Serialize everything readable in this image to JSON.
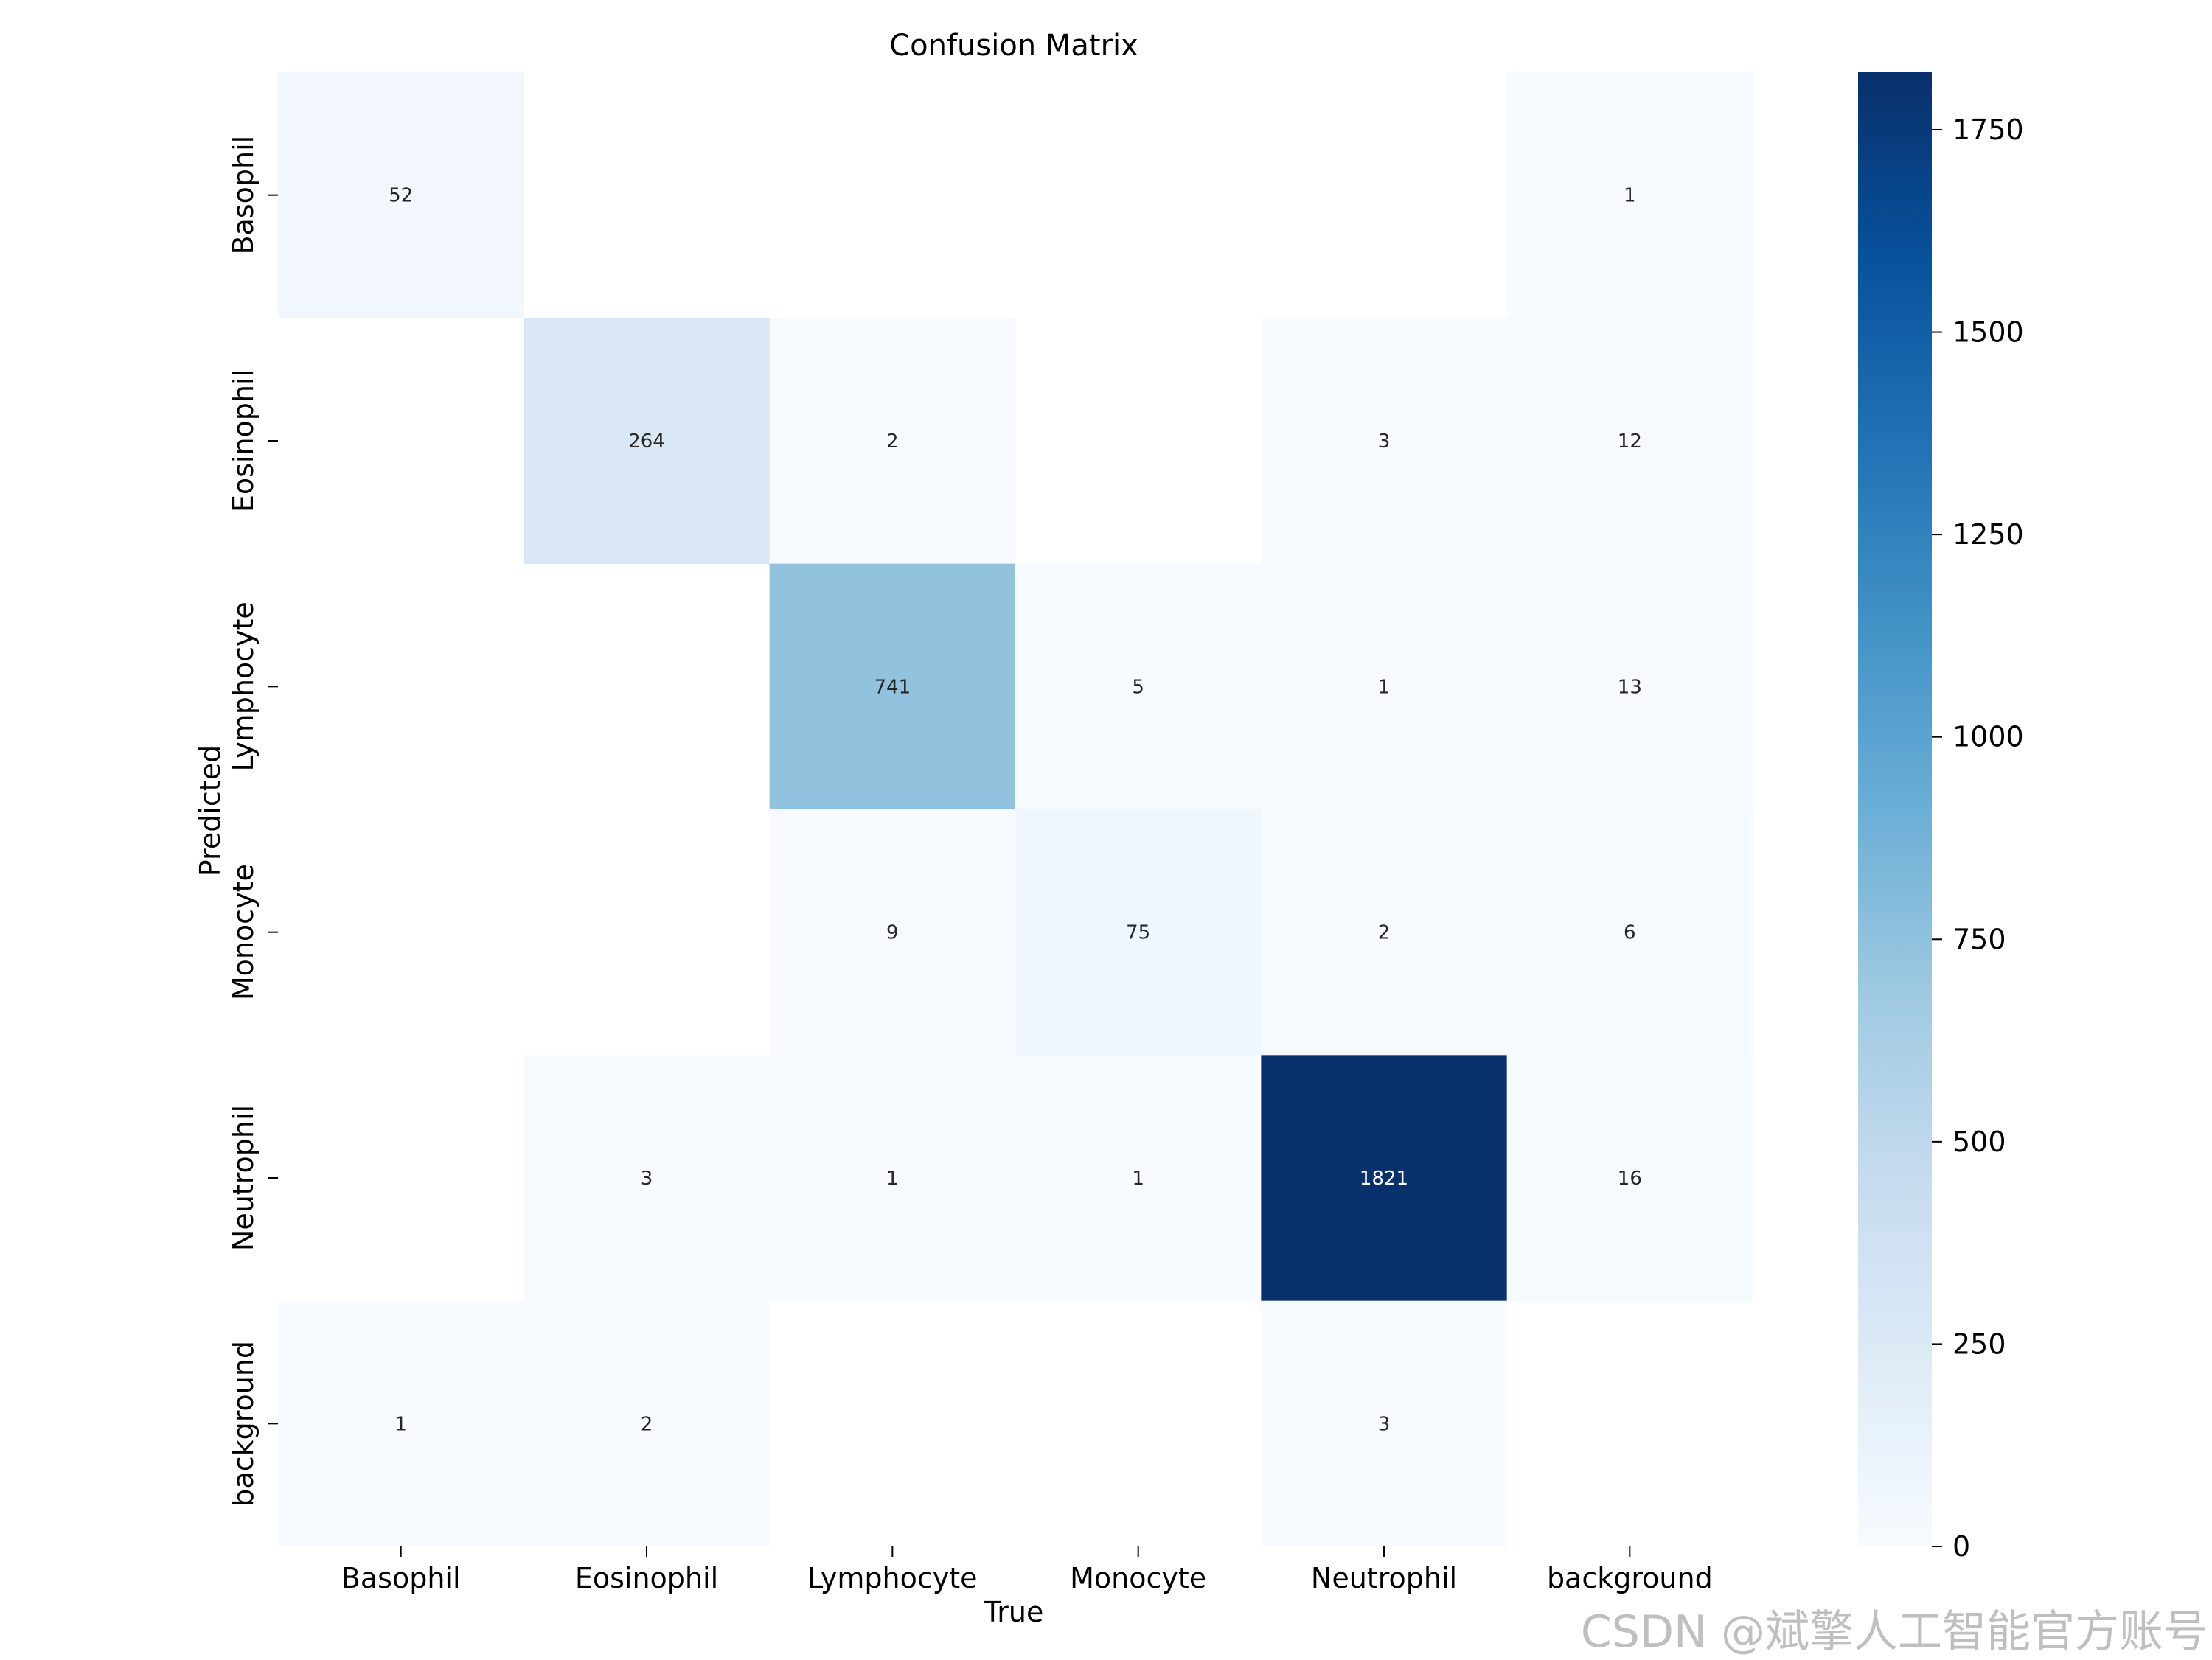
{
  "chart_data": {
    "type": "heatmap",
    "title": "Confusion Matrix",
    "xlabel": "True",
    "ylabel": "Predicted",
    "x_categories": [
      "Basophil",
      "Eosinophil",
      "Lymphocyte",
      "Monocyte",
      "Neutrophil",
      "background"
    ],
    "y_categories": [
      "Basophil",
      "Eosinophil",
      "Lymphocyte",
      "Monocyte",
      "Neutrophil",
      "background"
    ],
    "matrix": [
      [
        52,
        0,
        0,
        0,
        0,
        1
      ],
      [
        0,
        264,
        2,
        0,
        3,
        12
      ],
      [
        0,
        0,
        741,
        5,
        1,
        13
      ],
      [
        0,
        0,
        9,
        75,
        2,
        6
      ],
      [
        0,
        3,
        1,
        1,
        1821,
        16
      ],
      [
        1,
        2,
        0,
        0,
        3,
        0
      ]
    ],
    "colormap": "Blues",
    "colorbar": {
      "min": 0,
      "max": 1821,
      "ticks": [
        0,
        250,
        500,
        750,
        1000,
        1250,
        1500,
        1750
      ]
    },
    "zero_cells_blank": true
  },
  "watermark": "CSDN @斌擎人工智能官方账号"
}
